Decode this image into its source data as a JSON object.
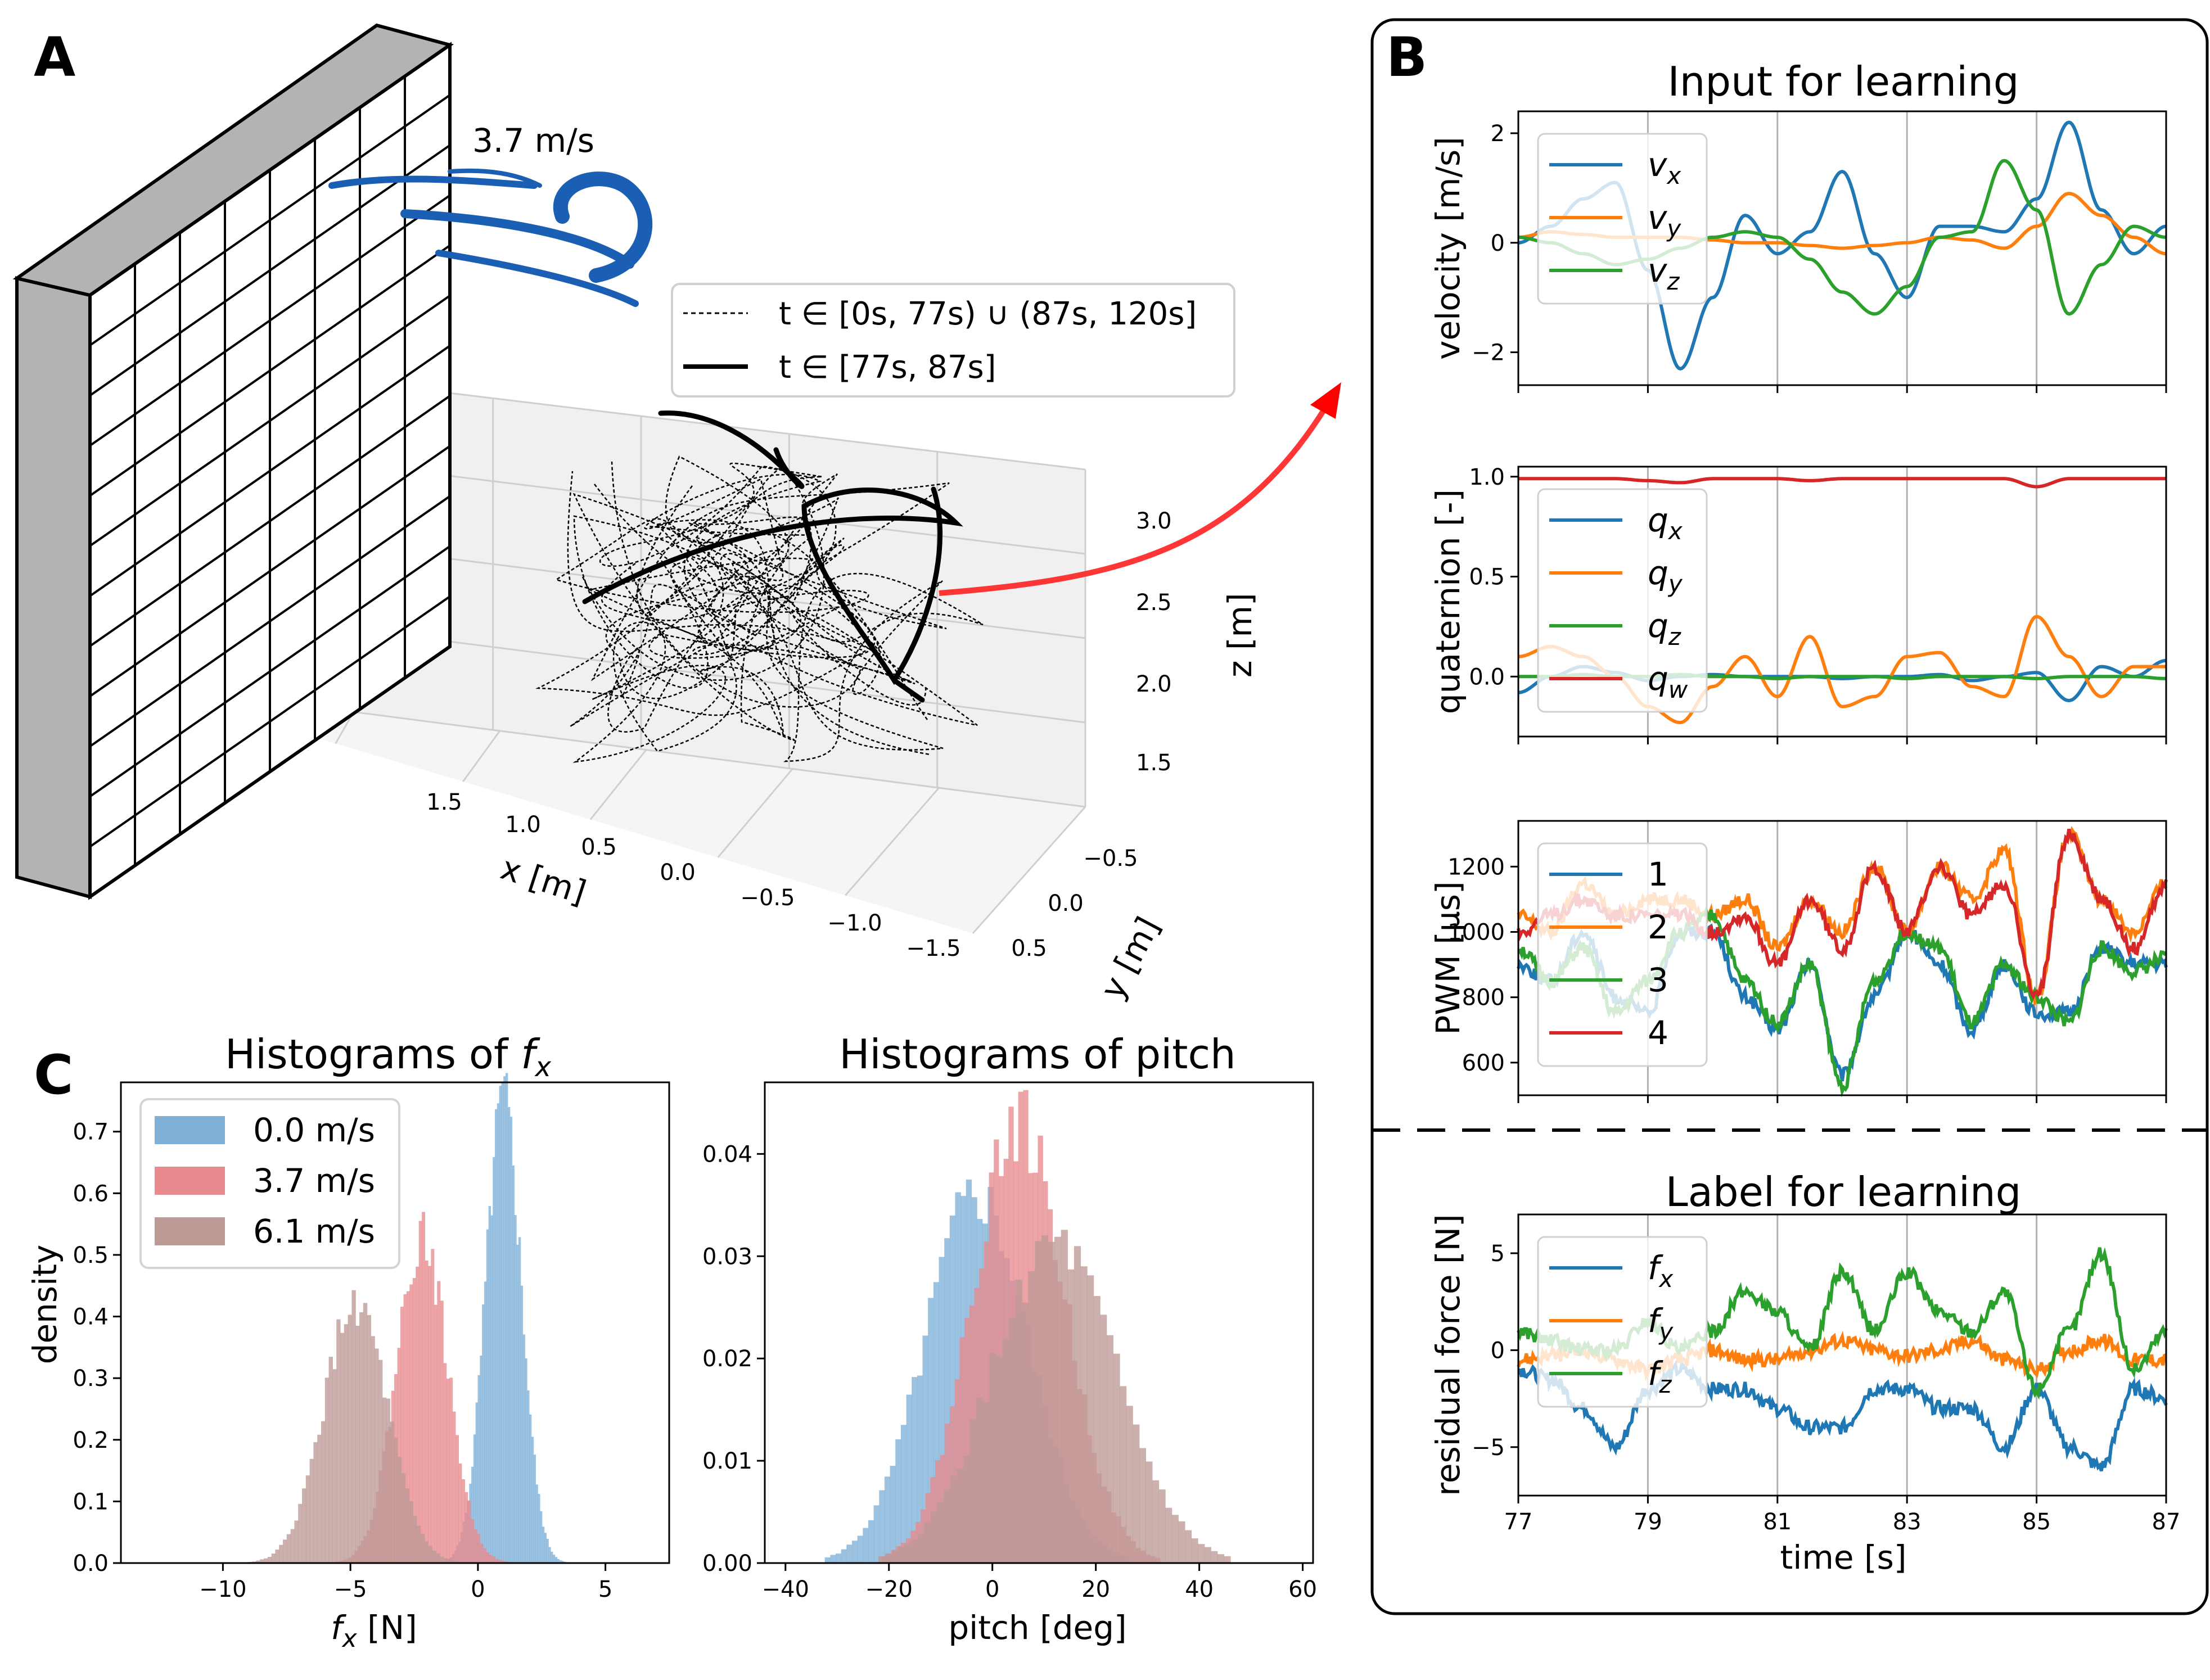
{
  "panels": {
    "a": "A",
    "b": "B",
    "c": "C"
  },
  "panel_a": {
    "wind_label": "3.7 m/s",
    "legend": [
      {
        "label": "t ∈ [0s, 77s) ∪ (87s, 120s]",
        "style": "dashed"
      },
      {
        "label": "t ∈ [77s, 87s]",
        "style": "solid"
      }
    ],
    "x_axis": {
      "label": "x [m]",
      "ticks": [
        "1.5",
        "1.0",
        "0.5",
        "0.0",
        "−0.5",
        "−1.0",
        "−1.5"
      ]
    },
    "y_axis": {
      "label": "y [m]",
      "ticks": [
        "−0.5",
        "0.0",
        "0.5"
      ]
    },
    "z_axis": {
      "label": "z [m]",
      "ticks": [
        "3.0",
        "2.5",
        "2.0",
        "1.5"
      ]
    }
  },
  "panel_b": {
    "title_top": "Input for learning",
    "title_bottom": "Label for learning",
    "xlabel": "time [s]",
    "xticks": [
      "77",
      "79",
      "81",
      "83",
      "85",
      "87"
    ],
    "colors": {
      "blue": "#1f77b4",
      "orange": "#ff7f0e",
      "green": "#2ca02c",
      "red": "#d62728"
    }
  },
  "panel_c": {
    "hist1": {
      "title": "Histograms of fx",
      "xlabel": "fx [N]",
      "ylabel": "density"
    },
    "hist2": {
      "title": "Histograms of pitch",
      "xlabel": "pitch [deg]"
    },
    "legend": [
      {
        "label": "0.0 m/s",
        "color": "#7fb1d8"
      },
      {
        "label": "3.7 m/s",
        "color": "#e88a8e"
      },
      {
        "label": "6.1 m/s",
        "color": "#bc9a96"
      }
    ]
  },
  "chart_data": [
    {
      "type": "line",
      "panel": "B-velocity",
      "ylabel": "velocity [m/s]",
      "xlim": [
        77,
        87
      ],
      "ylim": [
        -2.6,
        2.4
      ],
      "yticks": [
        "2",
        "0",
        "−2"
      ],
      "series": [
        {
          "name": "vx",
          "color": "#1f77b4",
          "x": [
            77,
            77.5,
            78,
            78.5,
            79,
            79.5,
            80,
            80.5,
            81,
            81.5,
            82,
            82.5,
            83,
            83.5,
            84,
            84.5,
            85,
            85.5,
            86,
            86.5,
            87
          ],
          "y": [
            0,
            0.3,
            0.8,
            1.1,
            -0.5,
            -2.3,
            -1.0,
            0.5,
            -0.2,
            0.2,
            1.3,
            -0.2,
            -1.0,
            0.3,
            0.3,
            0.2,
            0.8,
            2.2,
            0.6,
            -0.2,
            0.3
          ]
        },
        {
          "name": "vy",
          "color": "#ff7f0e",
          "x": [
            77,
            77.5,
            78,
            78.5,
            79,
            79.5,
            80,
            80.5,
            81,
            81.5,
            82,
            82.5,
            83,
            83.5,
            84,
            84.5,
            85,
            85.5,
            86,
            86.5,
            87
          ],
          "y": [
            0.1,
            0.2,
            0.15,
            0.1,
            0.1,
            0.1,
            0.05,
            0,
            0,
            -0.05,
            -0.1,
            -0.05,
            0,
            0.1,
            0.05,
            -0.1,
            0.3,
            0.9,
            0.5,
            0.1,
            -0.2
          ]
        },
        {
          "name": "vz",
          "color": "#2ca02c",
          "x": [
            77,
            77.5,
            78,
            78.5,
            79,
            79.5,
            80,
            80.5,
            81,
            81.5,
            82,
            82.5,
            83,
            83.5,
            84,
            84.5,
            85,
            85.5,
            86,
            86.5,
            87
          ],
          "y": [
            0.1,
            0,
            -0.2,
            -0.4,
            -0.3,
            -0.1,
            0.1,
            0.2,
            0.1,
            -0.3,
            -0.9,
            -1.3,
            -0.8,
            0.1,
            0.2,
            1.5,
            0.6,
            -1.3,
            -0.4,
            0.3,
            0.1
          ]
        }
      ]
    },
    {
      "type": "line",
      "panel": "B-quaternion",
      "ylabel": "quaternion [-]",
      "xlim": [
        77,
        87
      ],
      "ylim": [
        -0.3,
        1.05
      ],
      "yticks": [
        "1.0",
        "0.5",
        "0.0"
      ],
      "series": [
        {
          "name": "qx",
          "color": "#1f77b4",
          "x": [
            77,
            77.5,
            78,
            78.5,
            79,
            79.5,
            80,
            80.5,
            81,
            81.5,
            82,
            82.5,
            83,
            83.5,
            84,
            84.5,
            85,
            85.5,
            86,
            86.5,
            87
          ],
          "y": [
            -0.08,
            0,
            0.05,
            0.02,
            -0.02,
            0,
            0.01,
            0,
            0,
            0,
            -0.01,
            0,
            0,
            0.01,
            -0.02,
            0,
            0.02,
            -0.12,
            0.05,
            0,
            0.08
          ]
        },
        {
          "name": "qy",
          "color": "#ff7f0e",
          "x": [
            77,
            77.5,
            78,
            78.5,
            79,
            79.5,
            80,
            80.5,
            81,
            81.5,
            82,
            82.5,
            83,
            83.5,
            84,
            84.5,
            85,
            85.5,
            86,
            86.5,
            87
          ],
          "y": [
            0.1,
            0.15,
            0.1,
            0,
            -0.15,
            -0.23,
            -0.05,
            0.1,
            -0.1,
            0.2,
            -0.15,
            -0.1,
            0.1,
            0.12,
            -0.05,
            -0.1,
            0.3,
            0.1,
            -0.1,
            0.05,
            0.05
          ]
        },
        {
          "name": "qz",
          "color": "#2ca02c",
          "x": [
            77,
            77.5,
            78,
            78.5,
            79,
            79.5,
            80,
            80.5,
            81,
            81.5,
            82,
            82.5,
            83,
            83.5,
            84,
            84.5,
            85,
            85.5,
            86,
            86.5,
            87
          ],
          "y": [
            0,
            0,
            0.01,
            0,
            0,
            0.01,
            0,
            0,
            -0.01,
            0,
            0,
            0,
            -0.01,
            0,
            0,
            0,
            -0.01,
            0,
            0,
            0,
            -0.01
          ]
        },
        {
          "name": "qw",
          "color": "#d62728",
          "x": [
            77,
            77.5,
            78,
            78.5,
            79,
            79.5,
            80,
            80.5,
            81,
            81.5,
            82,
            82.5,
            83,
            83.5,
            84,
            84.5,
            85,
            85.5,
            86,
            86.5,
            87
          ],
          "y": [
            0.99,
            0.99,
            0.99,
            0.99,
            0.98,
            0.97,
            0.99,
            0.99,
            0.99,
            0.98,
            0.99,
            0.99,
            0.99,
            0.99,
            0.99,
            0.99,
            0.95,
            0.99,
            0.99,
            0.99,
            0.99
          ]
        }
      ]
    },
    {
      "type": "line",
      "panel": "B-pwm",
      "ylabel": "PWM [µs]",
      "xlim": [
        77,
        87
      ],
      "ylim": [
        500,
        1340
      ],
      "yticks": [
        "1200",
        "1000",
        "800",
        "600"
      ],
      "series": [
        {
          "name": "1",
          "color": "#1f77b4",
          "x": [
            77,
            77.5,
            78,
            78.5,
            79,
            79.5,
            80,
            80.5,
            81,
            81.5,
            82,
            82.5,
            83,
            83.5,
            84,
            84.5,
            85,
            85.5,
            86,
            86.5,
            87
          ],
          "y": [
            900,
            850,
            1000,
            800,
            750,
            1000,
            1000,
            800,
            700,
            900,
            560,
            800,
            1000,
            900,
            700,
            900,
            750,
            750,
            950,
            900,
            900
          ]
        },
        {
          "name": "2",
          "color": "#ff7f0e",
          "x": [
            77,
            77.5,
            78,
            78.5,
            79,
            79.5,
            80,
            80.5,
            81,
            81.5,
            82,
            82.5,
            83,
            83.5,
            84,
            84.5,
            85,
            85.5,
            86,
            86.5,
            87
          ],
          "y": [
            1050,
            1000,
            1150,
            1050,
            1100,
            1100,
            1050,
            1100,
            950,
            1100,
            1000,
            1200,
            1000,
            1200,
            1100,
            1250,
            800,
            1300,
            1100,
            1000,
            1150
          ]
        },
        {
          "name": "3",
          "color": "#2ca02c",
          "x": [
            77,
            77.5,
            78,
            78.5,
            79,
            79.5,
            80,
            80.5,
            81,
            81.5,
            82,
            82.5,
            83,
            83.5,
            84,
            84.5,
            85,
            85.5,
            86,
            86.5,
            87
          ],
          "y": [
            950,
            850,
            950,
            750,
            850,
            1000,
            1050,
            850,
            720,
            900,
            530,
            850,
            1000,
            950,
            720,
            900,
            800,
            720,
            950,
            880,
            920
          ]
        },
        {
          "name": "4",
          "color": "#d62728",
          "x": [
            77,
            77.5,
            78,
            78.5,
            79,
            79.5,
            80,
            80.5,
            81,
            81.5,
            82,
            82.5,
            83,
            83.5,
            84,
            84.5,
            85,
            85.5,
            86,
            86.5,
            87
          ],
          "y": [
            1000,
            1050,
            1100,
            1050,
            1050,
            1050,
            1000,
            1050,
            900,
            1100,
            950,
            1200,
            1000,
            1200,
            1050,
            1150,
            800,
            1300,
            1100,
            950,
            1150
          ]
        }
      ]
    },
    {
      "type": "line",
      "panel": "B-residual",
      "ylabel": "residual force [N]",
      "xlim": [
        77,
        87
      ],
      "ylim": [
        -7.5,
        7
      ],
      "yticks": [
        "5",
        "0",
        "−5"
      ],
      "series": [
        {
          "name": "fx",
          "color": "#1f77b4",
          "x": [
            77,
            77.5,
            78,
            78.5,
            79,
            79.5,
            80,
            80.5,
            81,
            81.5,
            82,
            82.5,
            83,
            83.5,
            84,
            84.5,
            85,
            85.5,
            86,
            86.5,
            87
          ],
          "y": [
            -1,
            -1.5,
            -3,
            -5,
            -2,
            -1,
            -2,
            -2,
            -3,
            -4,
            -4,
            -2,
            -2,
            -3,
            -3,
            -5,
            -2,
            -5,
            -6,
            -2,
            -2.5
          ]
        },
        {
          "name": "fy",
          "color": "#ff7f0e",
          "x": [
            77,
            77.5,
            78,
            78.5,
            79,
            79.5,
            80,
            80.5,
            81,
            81.5,
            82,
            82.5,
            83,
            83.5,
            84,
            84.5,
            85,
            85.5,
            86,
            86.5,
            87
          ],
          "y": [
            -0.5,
            -0.3,
            0,
            -0.5,
            -1,
            -0.5,
            0,
            -0.5,
            -0.5,
            0,
            0.5,
            0,
            -0.3,
            0,
            0.5,
            -0.5,
            -1,
            0,
            0.5,
            -0.5,
            -0.5
          ]
        },
        {
          "name": "fz",
          "color": "#2ca02c",
          "x": [
            77,
            77.5,
            78,
            78.5,
            79,
            79.5,
            80,
            80.5,
            81,
            81.5,
            82,
            82.5,
            83,
            83.5,
            84,
            84.5,
            85,
            85.5,
            86,
            86.5,
            87
          ],
          "y": [
            1,
            0.5,
            0,
            0,
            1.5,
            0,
            1,
            3,
            2,
            0,
            4,
            1,
            4,
            2,
            1,
            3,
            -2,
            1,
            5,
            -1,
            1
          ]
        }
      ]
    },
    {
      "type": "bar",
      "panel": "C-fx-histogram",
      "xlim": [
        -14,
        7.5
      ],
      "ylim": [
        0,
        0.78
      ],
      "xticks": [
        "−10",
        "−5",
        "0",
        "5"
      ],
      "yticks": [
        "0.0",
        "0.1",
        "0.2",
        "0.3",
        "0.4",
        "0.5",
        "0.6",
        "0.7"
      ],
      "series": [
        {
          "name": "0.0 m/s",
          "color": "#7fb1d8",
          "mu": 1.0,
          "sigma": 0.7,
          "peak": 0.75
        },
        {
          "name": "3.7 m/s",
          "color": "#e88a8e",
          "mu": -2.2,
          "sigma": 1.0,
          "peak": 0.53
        },
        {
          "name": "6.1 m/s",
          "color": "#bc9a96",
          "mu": -4.8,
          "sigma": 1.25,
          "peak": 0.42
        }
      ]
    },
    {
      "type": "bar",
      "panel": "C-pitch-histogram",
      "xlim": [
        -44,
        62
      ],
      "ylim": [
        0,
        0.047
      ],
      "xticks": [
        "−40",
        "−20",
        "0",
        "20",
        "40",
        "60"
      ],
      "yticks": [
        "0.00",
        "0.01",
        "0.02",
        "0.03",
        "0.04"
      ],
      "series": [
        {
          "name": "0.0 m/s",
          "color": "#7fb1d8",
          "mu": -3,
          "sigma": 10,
          "peak": 0.036
        },
        {
          "name": "3.7 m/s",
          "color": "#e88a8e",
          "mu": 5,
          "sigma": 9,
          "peak": 0.043
        },
        {
          "name": "6.1 m/s",
          "color": "#bc9a96",
          "mu": 12,
          "sigma": 12,
          "peak": 0.031
        }
      ]
    }
  ]
}
